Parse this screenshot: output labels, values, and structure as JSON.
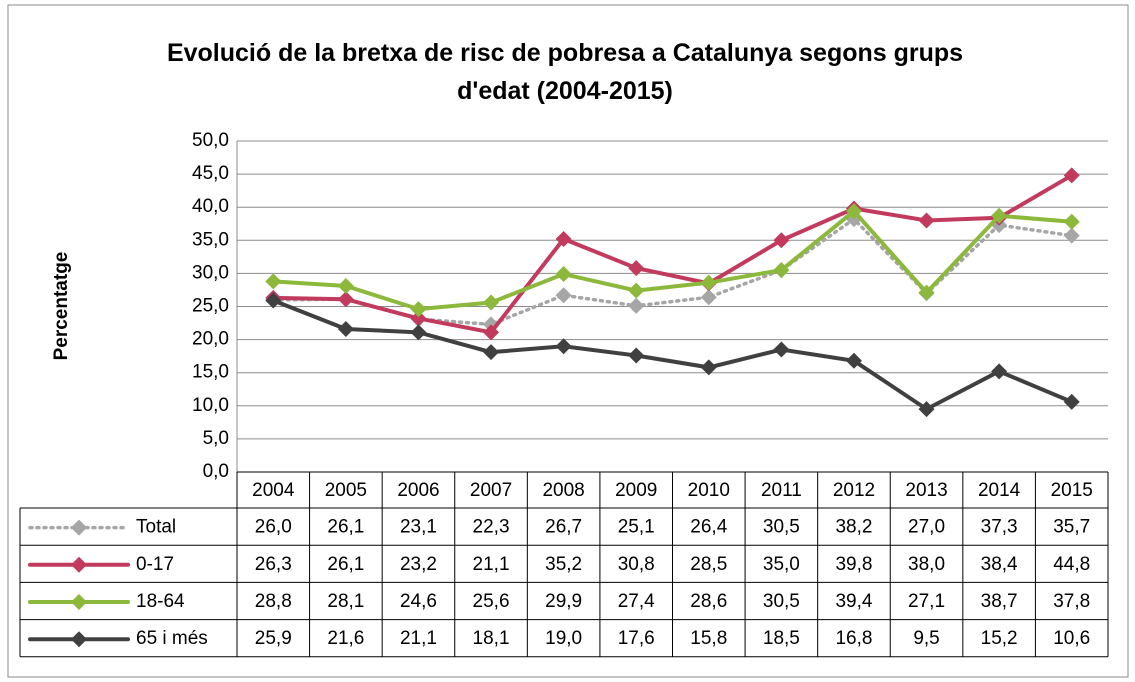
{
  "chart_data": {
    "type": "line",
    "title": "Evolució de la bretxa de risc de pobresa a Catalunya segons grups d'edat (2004-2015)",
    "y_label": "Percentatge",
    "categories": [
      "2004",
      "2005",
      "2006",
      "2007",
      "2008",
      "2009",
      "2010",
      "2011",
      "2012",
      "2013",
      "2014",
      "2015"
    ],
    "ylim": [
      0,
      50
    ],
    "yticks": [
      {
        "value": 0,
        "label": "0,0"
      },
      {
        "value": 5,
        "label": "5,0"
      },
      {
        "value": 10,
        "label": "10,0"
      },
      {
        "value": 15,
        "label": "15,0"
      },
      {
        "value": 20,
        "label": "20,0"
      },
      {
        "value": 25,
        "label": "25,0"
      },
      {
        "value": 30,
        "label": "30,0"
      },
      {
        "value": 35,
        "label": "35,0"
      },
      {
        "value": 40,
        "label": "40,0"
      },
      {
        "value": 45,
        "label": "45,0"
      },
      {
        "value": 50,
        "label": "50,0"
      }
    ],
    "grid": true,
    "legend": "table",
    "series": [
      {
        "name": "Total",
        "color": "#a6a6a6",
        "style": "dotted",
        "values": [
          26.0,
          26.1,
          23.1,
          22.3,
          26.7,
          25.1,
          26.4,
          30.5,
          38.2,
          27.0,
          37.3,
          35.7
        ],
        "value_labels": [
          "26,0",
          "26,1",
          "23,1",
          "22,3",
          "26,7",
          "25,1",
          "26,4",
          "30,5",
          "38,2",
          "27,0",
          "37,3",
          "35,7"
        ]
      },
      {
        "name": "0-17",
        "color": "#c23a5e",
        "style": "solid",
        "values": [
          26.3,
          26.1,
          23.2,
          21.1,
          35.2,
          30.8,
          28.5,
          35.0,
          39.8,
          38.0,
          38.4,
          44.8
        ],
        "value_labels": [
          "26,3",
          "26,1",
          "23,2",
          "21,1",
          "35,2",
          "30,8",
          "28,5",
          "35,0",
          "39,8",
          "38,0",
          "38,4",
          "44,8"
        ]
      },
      {
        "name": "18-64",
        "color": "#8cb83c",
        "style": "solid",
        "values": [
          28.8,
          28.1,
          24.6,
          25.6,
          29.9,
          27.4,
          28.6,
          30.5,
          39.4,
          27.1,
          38.7,
          37.8
        ],
        "value_labels": [
          "28,8",
          "28,1",
          "24,6",
          "25,6",
          "29,9",
          "27,4",
          "28,6",
          "30,5",
          "39,4",
          "27,1",
          "38,7",
          "37,8"
        ]
      },
      {
        "name": "65 i més",
        "color": "#404040",
        "style": "solid",
        "values": [
          25.9,
          21.6,
          21.1,
          18.1,
          19.0,
          17.6,
          15.8,
          18.5,
          16.8,
          9.5,
          15.2,
          10.6
        ],
        "value_labels": [
          "25,9",
          "21,6",
          "21,1",
          "18,1",
          "19,0",
          "17,6",
          "15,8",
          "18,5",
          "16,8",
          "9,5",
          "15,2",
          "10,6"
        ]
      }
    ]
  }
}
